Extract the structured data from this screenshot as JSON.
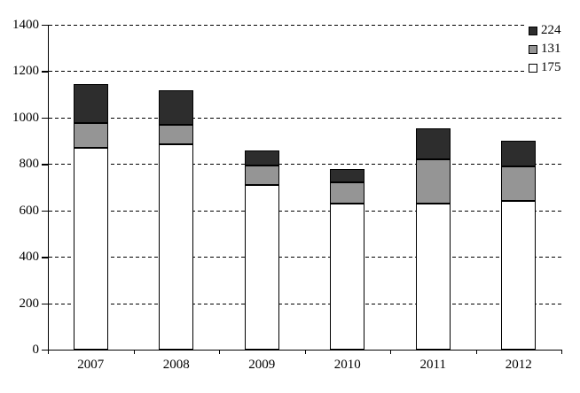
{
  "chart_data": {
    "type": "bar",
    "stacked": true,
    "title": "",
    "xlabel": "",
    "ylabel": "",
    "categories": [
      "2007",
      "2008",
      "2009",
      "2010",
      "2011",
      "2012"
    ],
    "series": [
      {
        "name": "175",
        "color": "#ffffff",
        "values": [
          870,
          884,
          711,
          628,
          628,
          642
        ]
      },
      {
        "name": "131",
        "color": "#959595",
        "values": [
          106,
          84,
          84,
          92,
          192,
          146
        ]
      },
      {
        "name": "224",
        "color": "#2d2d2d",
        "values": [
          167,
          151,
          65,
          60,
          134,
          113
        ]
      }
    ],
    "stack_totals": [
      1143,
      1119,
      860,
      780,
      954,
      901
    ],
    "ylim": [
      0,
      1400
    ],
    "yticks": [
      0,
      200,
      400,
      600,
      800,
      1000,
      1200,
      1400
    ],
    "grid": "horizontal-dashed",
    "legend": {
      "position": "top-right",
      "entries_top_to_bottom": [
        {
          "label": "224",
          "swatch_color": "#2d2d2d"
        },
        {
          "label": "131",
          "swatch_color": "#959595"
        },
        {
          "label": "175",
          "swatch_color": "#ffffff"
        }
      ]
    }
  },
  "colors": {
    "background": "#ffffff",
    "axis": "#000000",
    "grid": "#000000",
    "bar_border": "#000000"
  }
}
